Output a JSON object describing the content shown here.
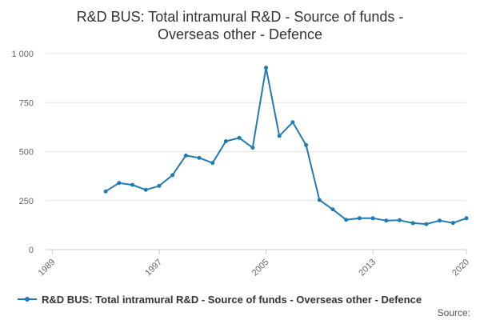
{
  "chart_data": {
    "type": "line",
    "title_lines": [
      "R&D BUS: Total intramural R&D - Source of funds -",
      "Overseas other - Defence"
    ],
    "xlabel": "",
    "ylabel": "",
    "xlim": [
      1988.5,
      2020
    ],
    "ylim": [
      0,
      1000
    ],
    "y_ticks": [
      0,
      250,
      500,
      750,
      1000
    ],
    "y_tick_labels": [
      "0",
      "250",
      "500",
      "750",
      "1 000"
    ],
    "x_ticks": [
      1989,
      1997,
      2005,
      2013,
      2020
    ],
    "x_tick_labels": [
      "1989",
      "1997",
      "2005",
      "2013",
      "2020"
    ],
    "grid": "horizontal",
    "legend_position": "bottom",
    "color": "#1f7bb6",
    "series": [
      {
        "name": "R&D BUS: Total intramural R&D - Source of funds - Overseas other - Defence",
        "x": [
          1993,
          1994,
          1995,
          1996,
          1997,
          1998,
          1999,
          2000,
          2001,
          2002,
          2003,
          2004,
          2005,
          2006,
          2007,
          2008,
          2009,
          2010,
          2011,
          2012,
          2013,
          2014,
          2015,
          2016,
          2017,
          2018,
          2019,
          2020
        ],
        "values": [
          297,
          340,
          330,
          305,
          325,
          380,
          480,
          468,
          442,
          553,
          570,
          520,
          928,
          580,
          650,
          533,
          253,
          205,
          152,
          160,
          160,
          148,
          150,
          135,
          130,
          148,
          136,
          160
        ]
      }
    ]
  },
  "credits": "Source:"
}
